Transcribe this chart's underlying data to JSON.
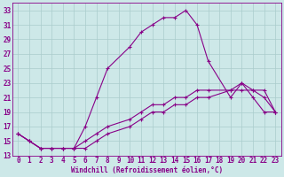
{
  "bg_color": "#cde8e8",
  "line_color": "#880088",
  "grid_color": "#aacccc",
  "xlabel": "Windchill (Refroidissement éolien,°C)",
  "xlim": [
    -0.5,
    23.5
  ],
  "ylim": [
    13,
    34
  ],
  "yticks": [
    13,
    15,
    17,
    19,
    21,
    23,
    25,
    27,
    29,
    31,
    33
  ],
  "xticks": [
    0,
    1,
    2,
    3,
    4,
    5,
    6,
    7,
    8,
    9,
    10,
    11,
    12,
    13,
    14,
    15,
    16,
    17,
    18,
    19,
    20,
    21,
    22,
    23
  ],
  "line1_x": [
    0,
    1,
    2,
    3,
    4,
    5,
    6,
    7,
    8,
    10,
    11,
    12,
    13,
    14,
    15,
    16,
    17,
    19,
    20,
    21,
    22,
    23
  ],
  "line1_y": [
    16,
    15,
    14,
    14,
    14,
    14,
    17,
    21,
    25,
    28,
    30,
    31,
    32,
    32,
    33,
    31,
    26,
    21,
    23,
    21,
    19,
    19
  ],
  "line2_x": [
    0,
    1,
    2,
    3,
    4,
    5,
    6,
    7,
    8,
    10,
    11,
    12,
    13,
    14,
    15,
    16,
    17,
    19,
    20,
    21,
    22,
    23
  ],
  "line2_y": [
    16,
    15,
    14,
    14,
    14,
    14,
    14,
    15,
    16,
    17,
    18,
    19,
    19,
    20,
    20,
    21,
    21,
    22,
    22,
    22,
    22,
    19
  ],
  "line3_x": [
    0,
    1,
    2,
    3,
    4,
    5,
    6,
    7,
    8,
    10,
    11,
    12,
    13,
    14,
    15,
    16,
    17,
    19,
    20,
    21,
    22,
    23
  ],
  "line3_y": [
    16,
    15,
    14,
    14,
    14,
    14,
    15,
    16,
    17,
    18,
    19,
    20,
    20,
    21,
    21,
    22,
    22,
    22,
    23,
    22,
    21,
    19
  ],
  "tick_fontsize": 5.5,
  "xlabel_fontsize": 5.5
}
